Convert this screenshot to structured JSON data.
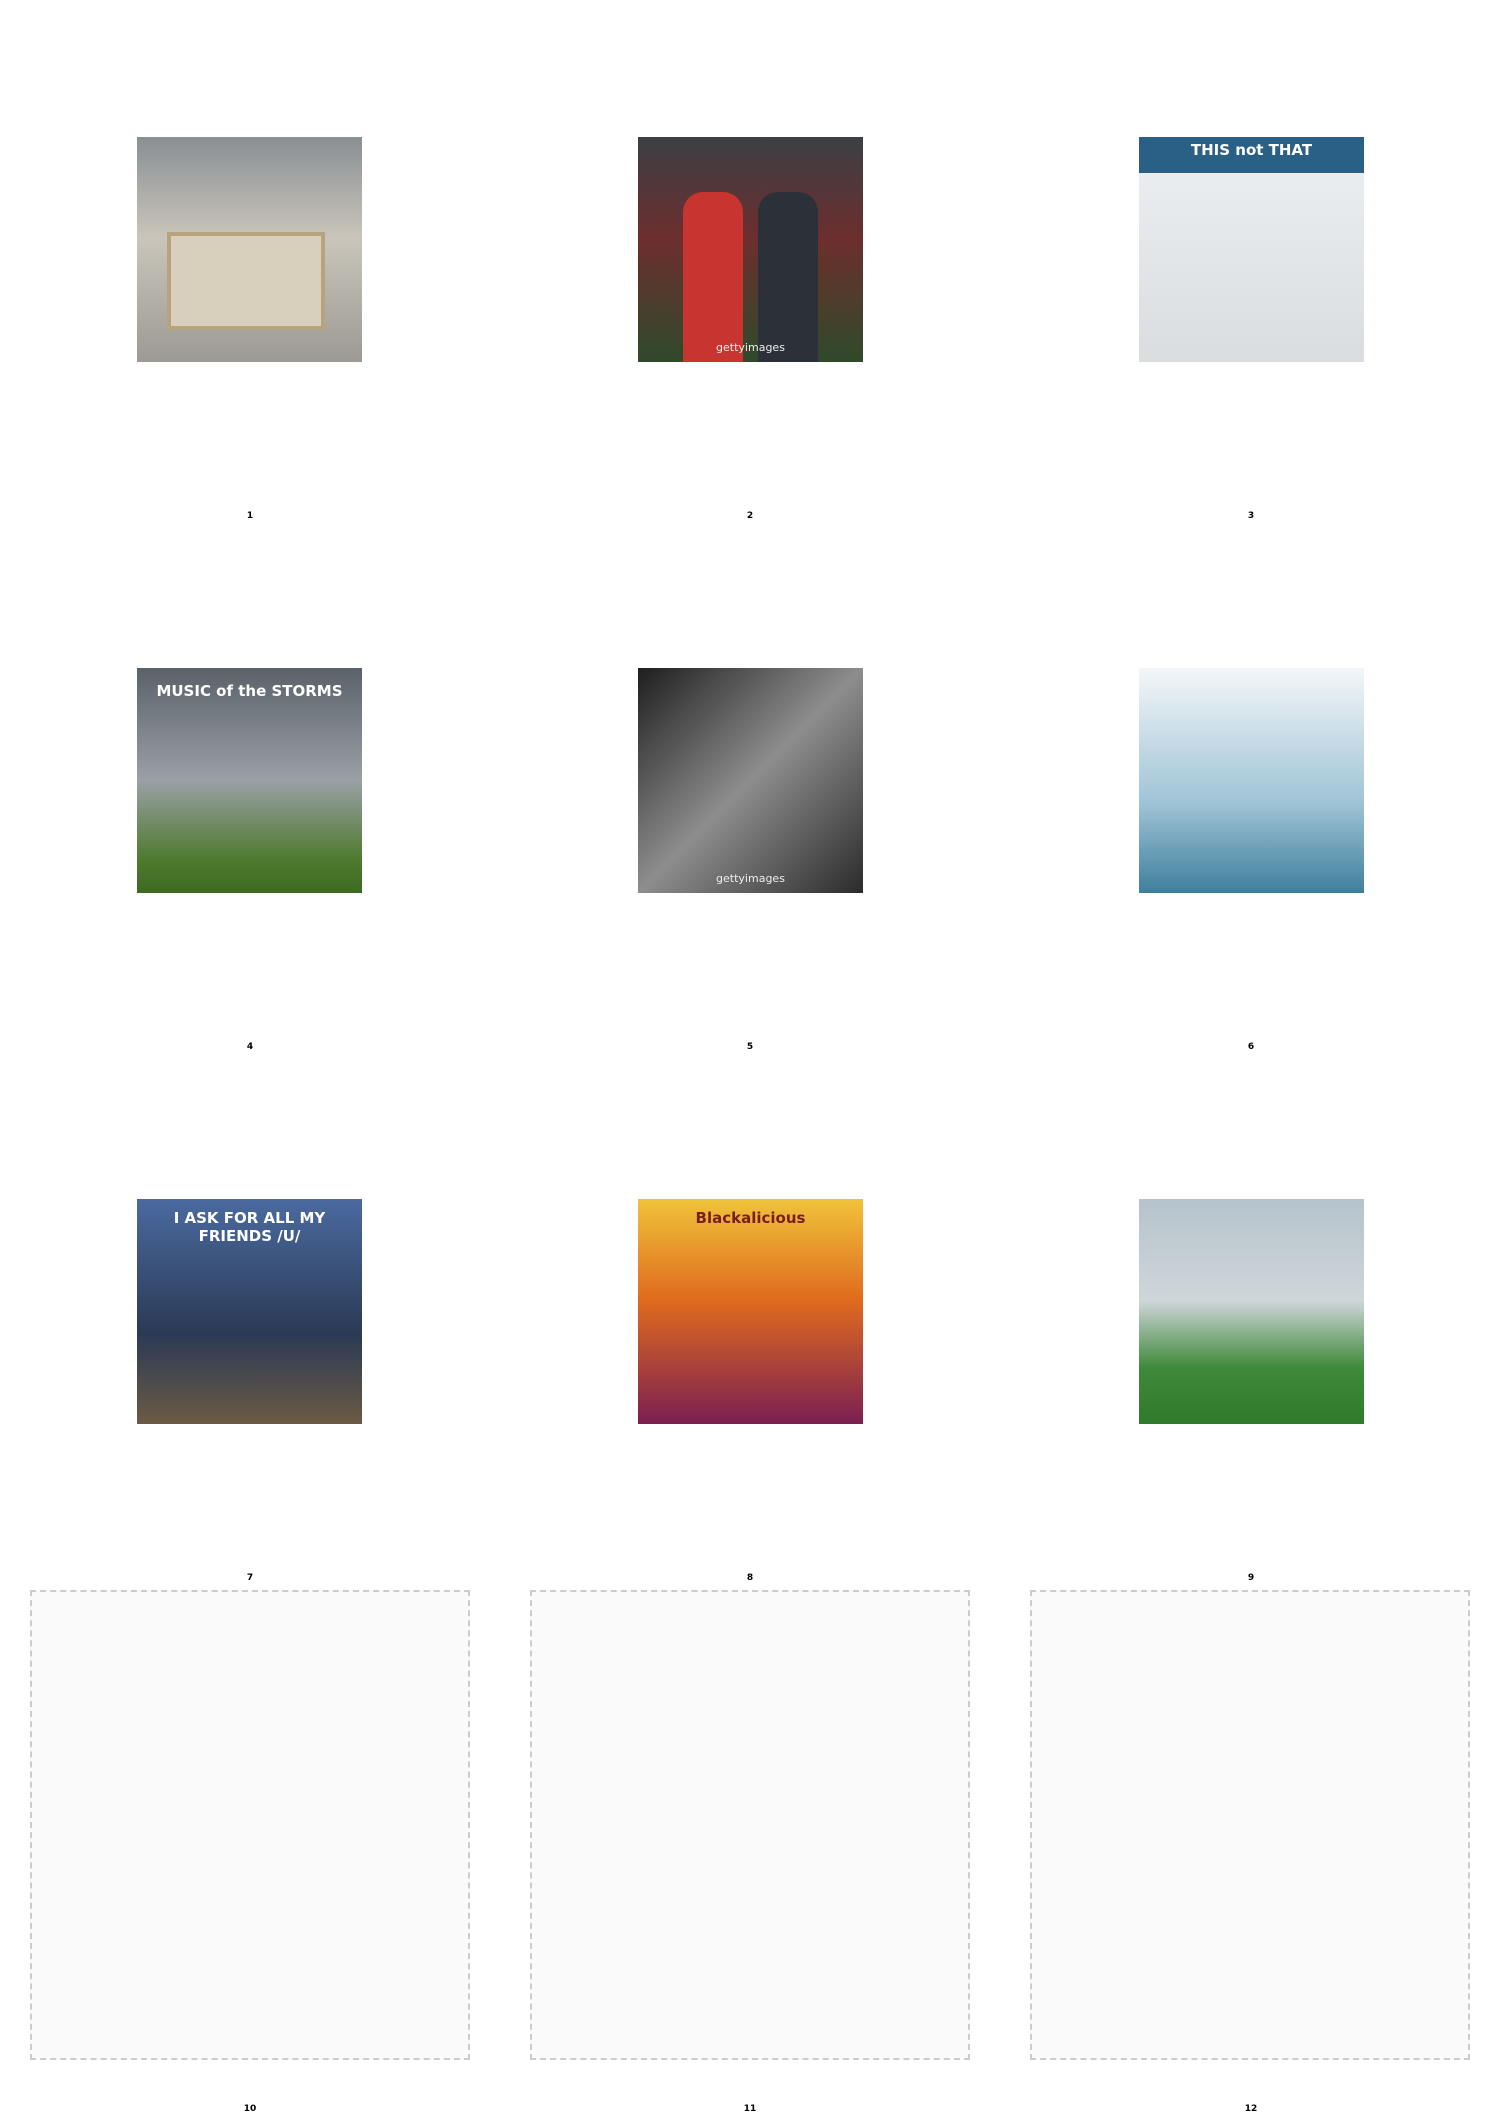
{
  "tiles": [
    {
      "label": "1",
      "caption": ""
    },
    {
      "label": "2",
      "caption": "gettyimages"
    },
    {
      "label": "3",
      "caption": "THIS not THAT"
    },
    {
      "label": "4",
      "caption": "MUSIC of the STORMS"
    },
    {
      "label": "5",
      "caption": "gettyimages"
    },
    {
      "label": "6",
      "caption": ""
    },
    {
      "label": "7",
      "caption": "I ASK FOR ALL MY FRIENDS /U/"
    },
    {
      "label": "8",
      "caption": "Blackalicious"
    },
    {
      "label": "9",
      "caption": ""
    }
  ],
  "panels": [
    {
      "label": "10"
    },
    {
      "label": "11"
    },
    {
      "label": "12"
    }
  ]
}
